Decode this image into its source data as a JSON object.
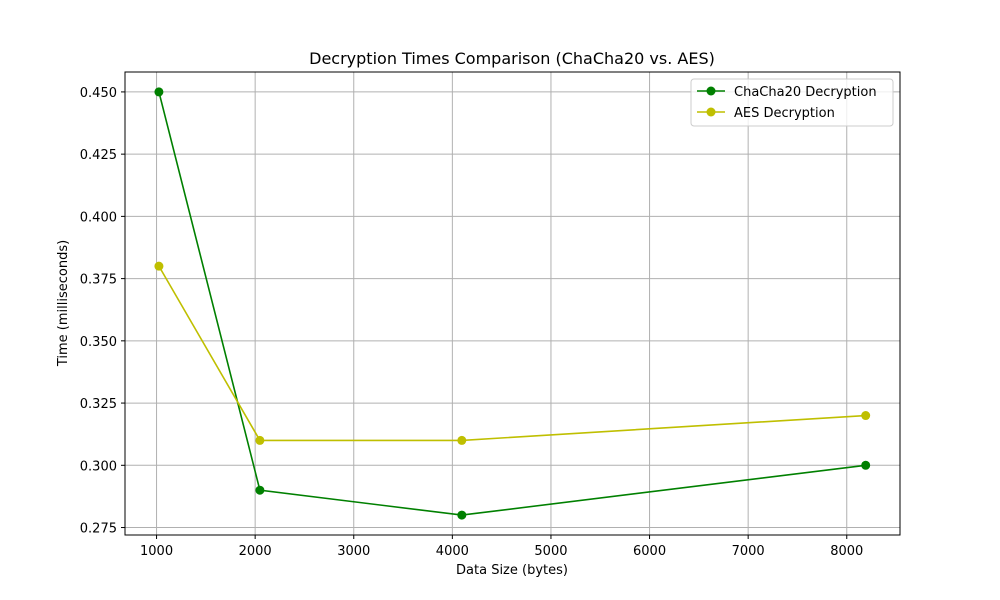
{
  "chart_data": {
    "type": "line",
    "title": "Decryption Times Comparison (ChaCha20 vs. AES)",
    "xlabel": "Data Size (bytes)",
    "ylabel": "Time (milliseconds)",
    "xlim": [
      680,
      8540
    ],
    "ylim": [
      0.272,
      0.458
    ],
    "x_ticks": [
      1000,
      2000,
      3000,
      4000,
      5000,
      6000,
      7000,
      8000
    ],
    "x_tick_labels": [
      "1000",
      "2000",
      "3000",
      "4000",
      "5000",
      "6000",
      "7000",
      "8000"
    ],
    "y_ticks": [
      0.275,
      0.3,
      0.325,
      0.35,
      0.375,
      0.4,
      0.425,
      0.45
    ],
    "y_tick_labels": [
      "0.275",
      "0.300",
      "0.325",
      "0.350",
      "0.375",
      "0.400",
      "0.425",
      "0.450"
    ],
    "grid": true,
    "legend_position": "top-right",
    "x": [
      1024,
      2048,
      4096,
      8192
    ],
    "series": [
      {
        "name": "ChaCha20 Decryption",
        "color": "#008000",
        "marker": "circle",
        "values": [
          0.45,
          0.29,
          0.28,
          0.3
        ]
      },
      {
        "name": "AES Decryption",
        "color": "#bfbf00",
        "marker": "circle",
        "values": [
          0.38,
          0.31,
          0.31,
          0.32
        ]
      }
    ]
  }
}
